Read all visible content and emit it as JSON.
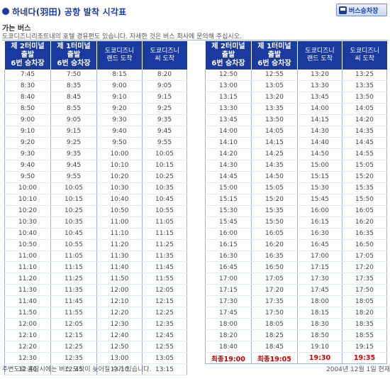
{
  "header": {
    "title": "하네다(羽田) 공항 발착 시각표",
    "bus_button_label": "버스승차장"
  },
  "section_title": "가는 버스",
  "note": "도쿄디즈니리조트내의 호텔 경유편도 있습니다. 자세한 것은 버스 회사에 문의해 주십시오.",
  "columns": [
    "제 2터미널\n출발\n6번 승차장",
    "제 1터미널\n출발\n6번 승차장",
    "도쿄디즈니\n랜드 도착",
    "도쿄디즈니\n씨 도착"
  ],
  "left_rows": [
    [
      "7:45",
      "7:50",
      "8:15",
      "8:20"
    ],
    [
      "8:30",
      "8:35",
      "9:00",
      "9:05"
    ],
    [
      "8:40",
      "8:45",
      "9:10",
      "9:15"
    ],
    [
      "8:50",
      "8:55",
      "9:20",
      "9:25"
    ],
    [
      "9:00",
      "9:05",
      "9:30",
      "9:35"
    ],
    [
      "9:10",
      "9:15",
      "9:40",
      "9:45"
    ],
    [
      "9:20",
      "9:25",
      "9:50",
      "9:55"
    ],
    [
      "9:30",
      "9:35",
      "10:00",
      "10:05"
    ],
    [
      "9:40",
      "9:45",
      "10:10",
      "10:15"
    ],
    [
      "9:50",
      "9:55",
      "10:20",
      "10:25"
    ],
    [
      "10:00",
      "10:05",
      "10:30",
      "10:35"
    ],
    [
      "10:10",
      "10:15",
      "10:40",
      "10:45"
    ],
    [
      "10:20",
      "10:25",
      "10:50",
      "10:55"
    ],
    [
      "10:30",
      "10:35",
      "11:00",
      "11:05"
    ],
    [
      "10:40",
      "10:45",
      "11:10",
      "11:15"
    ],
    [
      "10:50",
      "10:55",
      "11:20",
      "11:25"
    ],
    [
      "11:00",
      "11:05",
      "11:30",
      "11:35"
    ],
    [
      "11:10",
      "11:15",
      "11:40",
      "11:45"
    ],
    [
      "11:20",
      "11:25",
      "11:50",
      "11:55"
    ],
    [
      "11:30",
      "11:35",
      "12:00",
      "12:05"
    ],
    [
      "11:40",
      "11:45",
      "12:10",
      "12:15"
    ],
    [
      "11:50",
      "11:55",
      "12:20",
      "12:25"
    ],
    [
      "12:00",
      "12:05",
      "12:30",
      "12:35"
    ],
    [
      "12:10",
      "12:15",
      "12:40",
      "12:45"
    ],
    [
      "12:20",
      "12:25",
      "12:50",
      "12:55"
    ],
    [
      "12:30",
      "12:35",
      "13:00",
      "13:05"
    ],
    [
      "12:40",
      "12:45",
      "13:10",
      "13:15"
    ]
  ],
  "right_rows": [
    [
      "12:50",
      "12:55",
      "13:20",
      "13:25"
    ],
    [
      "13:00",
      "13:05",
      "13:30",
      "13:35"
    ],
    [
      "13:15",
      "13:20",
      "13:45",
      "13:50"
    ],
    [
      "13:30",
      "13:35",
      "14:00",
      "14:05"
    ],
    [
      "13:45",
      "13:50",
      "14:15",
      "14:20"
    ],
    [
      "14:00",
      "14:05",
      "14:30",
      "14:35"
    ],
    [
      "14:10",
      "14:15",
      "14:40",
      "14:45"
    ],
    [
      "14:20",
      "14:25",
      "14:50",
      "14:55"
    ],
    [
      "14:30",
      "14:35",
      "15:00",
      "15:05"
    ],
    [
      "14:45",
      "14:50",
      "15:15",
      "15:20"
    ],
    [
      "15:00",
      "15:05",
      "15:30",
      "15:35"
    ],
    [
      "15:15",
      "15:20",
      "15:45",
      "15:50"
    ],
    [
      "15:30",
      "15:35",
      "16:00",
      "16:05"
    ],
    [
      "15:45",
      "15:50",
      "16:15",
      "16:20"
    ],
    [
      "16:00",
      "16:05",
      "16:30",
      "16:35"
    ],
    [
      "16:15",
      "16:20",
      "16:45",
      "16:50"
    ],
    [
      "16:30",
      "16:35",
      "17:00",
      "17:05"
    ],
    [
      "16:45",
      "16:50",
      "17:15",
      "17:20"
    ],
    [
      "17:00",
      "17:05",
      "17:30",
      "17:35"
    ],
    [
      "17:15",
      "17:20",
      "17:45",
      "17:50"
    ],
    [
      "17:30",
      "17:35",
      "18:00",
      "18:05"
    ],
    [
      "17:45",
      "17:50",
      "18:15",
      "18:20"
    ],
    [
      "18:00",
      "18:05",
      "18:30",
      "18:35"
    ],
    [
      "18:20",
      "18:25",
      "18:50",
      "18:55"
    ],
    [
      "18:40",
      "18:45",
      "19:10",
      "19:15"
    ],
    [
      "최종19:00",
      "최종19:05",
      "19:30",
      "19:35"
    ]
  ],
  "footer": {
    "left": "주변도로 혼잡시에는 버스 도착이 늦어질 수가 있습니다.",
    "right": "2004년 12월 1일 현재"
  },
  "colors": {
    "brand": "#1b3aa0",
    "last_bus": "#cc0000"
  }
}
